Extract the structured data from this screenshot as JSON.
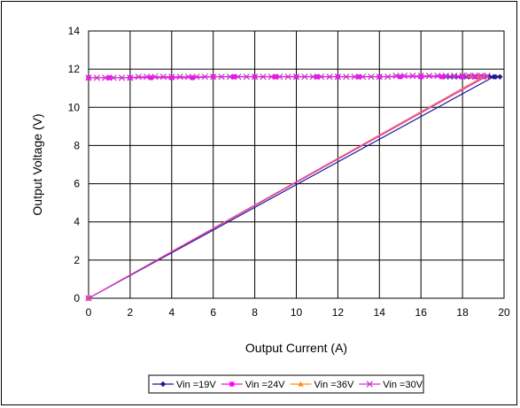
{
  "chart_data": {
    "type": "line",
    "title": "",
    "xlabel": "Output Current (A)",
    "ylabel": "Output Voltage  (V)",
    "xlim": [
      0,
      20
    ],
    "ylim": [
      0,
      14
    ],
    "xticks": [
      0,
      2,
      4,
      6,
      8,
      10,
      12,
      14,
      16,
      18,
      20
    ],
    "yticks": [
      0,
      2,
      4,
      6,
      8,
      10,
      12,
      14
    ],
    "grid": true,
    "legend_position": "bottom",
    "series": [
      {
        "name": "Vin =19V",
        "color": "#1a1a8c",
        "marker": "diamond",
        "x": [
          0,
          19.5,
          19.8,
          19.6,
          19.3,
          19.1,
          18.9,
          18.7,
          18.5,
          18.3,
          18.1,
          17.9,
          17.7,
          17.5,
          17.3,
          17.1
        ],
        "y": [
          0,
          11.6,
          11.6,
          11.6,
          11.6,
          11.6,
          11.6,
          11.6,
          11.6,
          11.6,
          11.6,
          11.6,
          11.6,
          11.6,
          11.6,
          11.6
        ]
      },
      {
        "name": "Vin =24V",
        "color": "#ff00ff",
        "marker": "square",
        "x": [
          0,
          19.0,
          18.6,
          18.0,
          17.0,
          16.0,
          15.0,
          14.0,
          13.0,
          12.0,
          11.0,
          10.0,
          9.0,
          8.0,
          7.0,
          6.0,
          5.0,
          4.0,
          3.0,
          2.0,
          1.0,
          0.0
        ],
        "y": [
          0,
          11.6,
          11.6,
          11.6,
          11.6,
          11.6,
          11.6,
          11.6,
          11.6,
          11.6,
          11.6,
          11.6,
          11.6,
          11.6,
          11.6,
          11.6,
          11.55,
          11.55,
          11.55,
          11.55,
          11.55,
          11.55
        ]
      },
      {
        "name": "Vin =36V",
        "color": "#ff8c1a",
        "marker": "triangle",
        "x": [
          0,
          19.1,
          18.8,
          18.4
        ],
        "y": [
          0,
          11.65,
          11.65,
          11.65
        ]
      },
      {
        "name": "Vin =30V",
        "color": "#cc33cc",
        "marker": "x",
        "x": [
          0,
          19.2,
          18.9,
          18.6,
          18.3,
          18.0,
          17.6,
          17.2,
          16.8,
          16.4,
          16.0,
          15.6,
          15.2,
          14.8,
          14.4,
          14.0,
          13.6,
          13.2,
          12.8,
          12.4,
          12.0,
          11.6,
          11.2,
          10.8,
          10.4,
          10.0,
          9.6,
          9.2,
          8.8,
          8.4,
          8.0,
          7.6,
          7.2,
          6.8,
          6.4,
          6.0,
          5.6,
          5.2,
          4.8,
          4.4,
          4.0,
          3.6,
          3.2,
          2.8,
          2.4,
          2.0,
          1.6,
          1.2,
          0.8,
          0.4,
          0.0
        ],
        "y": [
          0,
          11.65,
          11.65,
          11.65,
          11.65,
          11.65,
          11.65,
          11.65,
          11.65,
          11.65,
          11.65,
          11.65,
          11.65,
          11.65,
          11.6,
          11.6,
          11.6,
          11.6,
          11.6,
          11.6,
          11.6,
          11.6,
          11.6,
          11.6,
          11.6,
          11.6,
          11.6,
          11.6,
          11.6,
          11.6,
          11.6,
          11.6,
          11.6,
          11.6,
          11.6,
          11.6,
          11.6,
          11.6,
          11.6,
          11.6,
          11.6,
          11.6,
          11.6,
          11.6,
          11.6,
          11.55,
          11.55,
          11.55,
          11.55,
          11.55,
          11.55
        ]
      }
    ]
  }
}
